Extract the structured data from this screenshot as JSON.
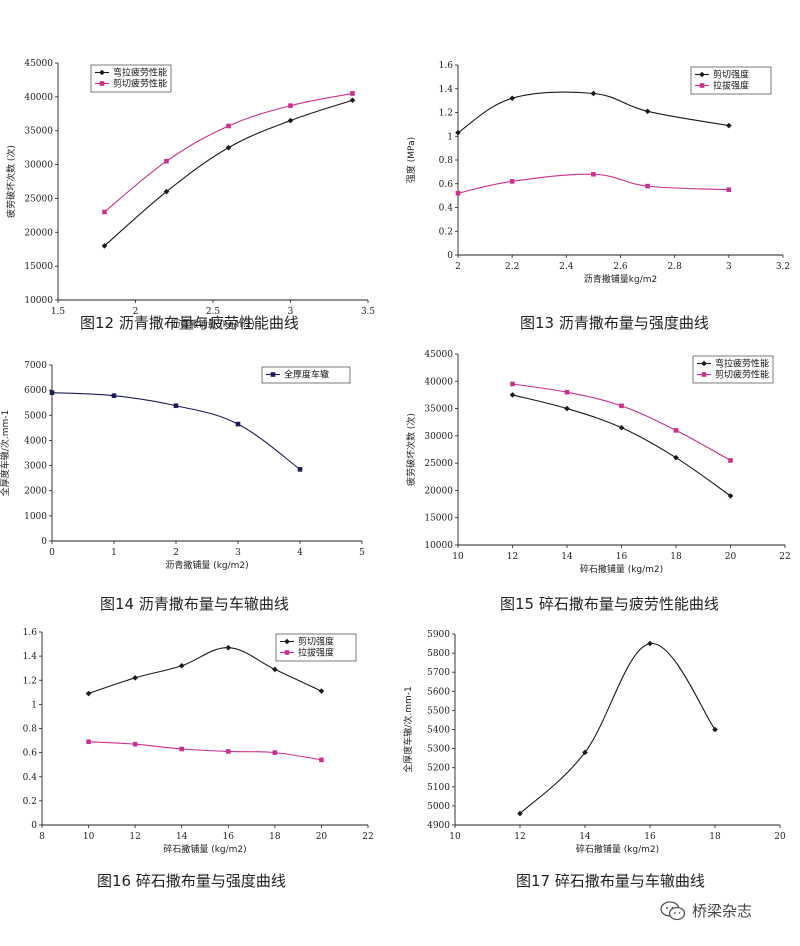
{
  "chart_data": [
    {
      "id": "c12",
      "type": "line",
      "caption": "图12 沥青撒布量与疲劳性能曲线",
      "xlabel": "沥青撒铺量 (kg/m2)",
      "ylabel": "疲劳破坏次数 (次)",
      "xlim": [
        1.5,
        3.5
      ],
      "ylim": [
        10000,
        45000
      ],
      "xticks": [
        "1.5",
        "2",
        "2.5",
        "3",
        "3.5"
      ],
      "yticks": [
        "10000",
        "15000",
        "20000",
        "25000",
        "30000",
        "35000",
        "40000",
        "45000"
      ],
      "legend_position": "top-left",
      "series": [
        {
          "name": "弯拉疲劳性能",
          "color": "#1a1a1a",
          "marker": "diamond",
          "x": [
            1.8,
            2.2,
            2.6,
            3.0,
            3.4
          ],
          "y": [
            18000,
            26000,
            32500,
            36500,
            39500
          ]
        },
        {
          "name": "剪切疲劳性能",
          "color": "#cc2f8e",
          "marker": "square",
          "x": [
            1.8,
            2.2,
            2.6,
            3.0,
            3.4
          ],
          "y": [
            23000,
            30500,
            35700,
            38700,
            40500
          ]
        }
      ]
    },
    {
      "id": "c13",
      "type": "line",
      "caption": "图13 沥青撒布量与强度曲线",
      "xlabel": "沥青撒铺量kg/m2",
      "ylabel": "强度 (MPa)",
      "xlim": [
        2,
        3.2
      ],
      "ylim": [
        0,
        1.6
      ],
      "xticks": [
        "2",
        "2.2",
        "2.4",
        "2.6",
        "2.8",
        "3",
        "3.2"
      ],
      "yticks": [
        "0",
        "0.2",
        "0.4",
        "0.6",
        "0.8",
        "1",
        "1.2",
        "1.4",
        "1.6"
      ],
      "legend_position": "top-right",
      "series": [
        {
          "name": "剪切强度",
          "color": "#1a1a1a",
          "marker": "diamond",
          "x": [
            2.0,
            2.2,
            2.5,
            2.7,
            3.0
          ],
          "y": [
            1.03,
            1.32,
            1.36,
            1.21,
            1.09
          ]
        },
        {
          "name": "拉拔强度",
          "color": "#cc2f8e",
          "marker": "square",
          "x": [
            2.0,
            2.2,
            2.5,
            2.7,
            3.0
          ],
          "y": [
            0.52,
            0.62,
            0.68,
            0.58,
            0.55
          ]
        }
      ]
    },
    {
      "id": "c14",
      "type": "line",
      "caption": "图14 沥青撒布量与车辙曲线",
      "xlabel": "沥青撒铺量 (kg/m2)",
      "ylabel": "全厚度车辙/次.mm-1",
      "xlim": [
        0,
        5
      ],
      "ylim": [
        0,
        7000
      ],
      "xticks": [
        "0",
        "1",
        "2",
        "3",
        "4",
        "5"
      ],
      "yticks": [
        "0",
        "1000",
        "2000",
        "3000",
        "4000",
        "5000",
        "6000",
        "7000"
      ],
      "legend_position": "top-right",
      "series": [
        {
          "name": "全厚度车辙",
          "color": "#1a1a5a",
          "marker": "square",
          "x": [
            0,
            1,
            2,
            3,
            4
          ],
          "y": [
            5900,
            5780,
            5380,
            4650,
            2850
          ]
        }
      ]
    },
    {
      "id": "c15",
      "type": "line",
      "caption": "图15 碎石撒布量与疲劳性能曲线",
      "xlabel": "碎石撒铺量 (kg/m2)",
      "ylabel": "疲劳破坏次数 (次)",
      "xlim": [
        10,
        22
      ],
      "ylim": [
        10000,
        45000
      ],
      "xticks": [
        "10",
        "12",
        "14",
        "16",
        "18",
        "20",
        "22"
      ],
      "yticks": [
        "10000",
        "15000",
        "20000",
        "25000",
        "30000",
        "35000",
        "40000",
        "45000"
      ],
      "legend_position": "top-right",
      "series": [
        {
          "name": "弯拉疲劳性能",
          "color": "#1a1a1a",
          "marker": "diamond",
          "x": [
            12,
            14,
            16,
            18,
            20
          ],
          "y": [
            37500,
            35000,
            31500,
            26000,
            19000
          ]
        },
        {
          "name": "剪切疲劳性能",
          "color": "#cc2f8e",
          "marker": "square",
          "x": [
            12,
            14,
            16,
            18,
            20
          ],
          "y": [
            39500,
            38000,
            35500,
            31000,
            25500
          ]
        }
      ]
    },
    {
      "id": "c16",
      "type": "line",
      "caption": "图16 碎石撒布量与强度曲线",
      "xlabel": "碎石撒铺量 (kg/m2)",
      "ylabel": "强度 (MPa)",
      "xlim": [
        8,
        22
      ],
      "ylim": [
        0,
        1.6
      ],
      "xticks": [
        "8",
        "10",
        "12",
        "14",
        "16",
        "18",
        "20",
        "22"
      ],
      "yticks": [
        "0",
        "0.2",
        "0.4",
        "0.6",
        "0.8",
        "1",
        "1.2",
        "1.4",
        "1.6"
      ],
      "legend_position": "top-right",
      "series": [
        {
          "name": "剪切强度",
          "color": "#1a1a1a",
          "marker": "diamond",
          "x": [
            10,
            12,
            14,
            16,
            18,
            20
          ],
          "y": [
            1.09,
            1.22,
            1.32,
            1.47,
            1.29,
            1.11
          ]
        },
        {
          "name": "拉拔强度",
          "color": "#cc2f8e",
          "marker": "square",
          "x": [
            10,
            12,
            14,
            16,
            18,
            20
          ],
          "y": [
            0.69,
            0.67,
            0.63,
            0.61,
            0.6,
            0.54
          ]
        }
      ]
    },
    {
      "id": "c17",
      "type": "line",
      "caption": "图17 碎石撒布量与车辙曲线",
      "xlabel": "碎石撒铺量 (kg/m2)",
      "ylabel": "全厚度车辙/次.mm-1",
      "xlim": [
        10,
        20
      ],
      "ylim": [
        4900,
        5900
      ],
      "xticks": [
        "10",
        "12",
        "14",
        "16",
        "18",
        "20"
      ],
      "yticks": [
        "4900",
        "5000",
        "5100",
        "5200",
        "5300",
        "5400",
        "5500",
        "5600",
        "5700",
        "5800",
        "5900"
      ],
      "legend_position": "none",
      "series": [
        {
          "name": "全厚度车辙",
          "color": "#1a1a1a",
          "marker": "diamond",
          "x": [
            12,
            14,
            16,
            18
          ],
          "y": [
            4960,
            5280,
            5850,
            5400
          ]
        }
      ]
    }
  ],
  "watermark": {
    "text": "桥梁杂志",
    "icon": "wechat-icon"
  }
}
